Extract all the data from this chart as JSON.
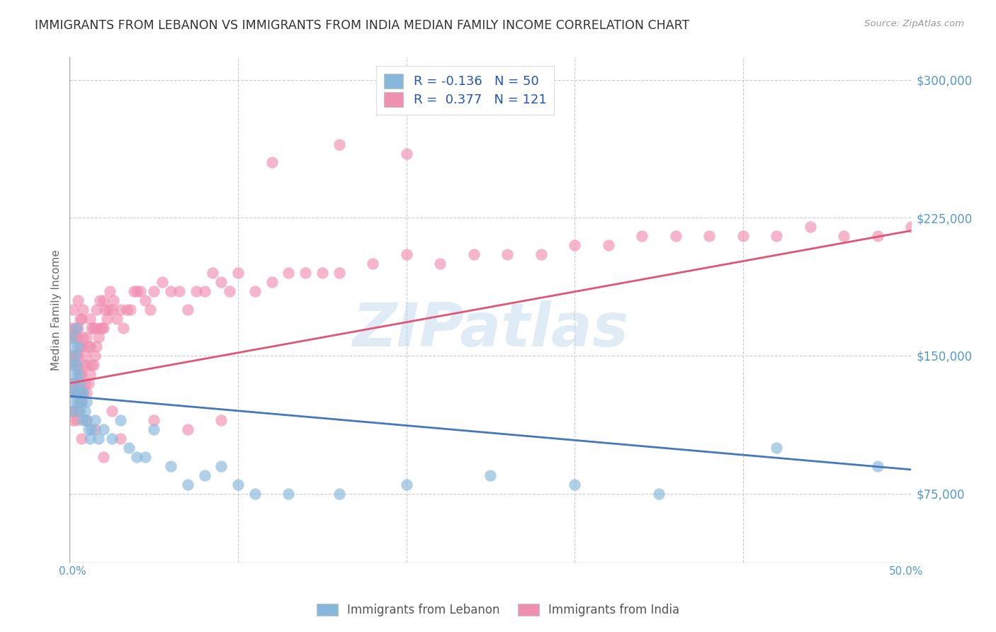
{
  "title": "IMMIGRANTS FROM LEBANON VS IMMIGRANTS FROM INDIA MEDIAN FAMILY INCOME CORRELATION CHART",
  "source": "Source: ZipAtlas.com",
  "ylabel": "Median Family Income",
  "x_min": 0.0,
  "x_max": 0.5,
  "y_min": 37500,
  "y_max": 312500,
  "y_ticks": [
    75000,
    150000,
    225000,
    300000
  ],
  "y_tick_labels": [
    "$75,000",
    "$150,000",
    "$225,000",
    "$300,000"
  ],
  "x_ticks": [
    0.0,
    0.1,
    0.2,
    0.3,
    0.4,
    0.5
  ],
  "watermark": "ZIPatlas",
  "lebanon_color": "#85b8db",
  "india_color": "#f090b0",
  "lebanon_line_color": "#4477bb",
  "india_line_color": "#e05575",
  "background_color": "#ffffff",
  "grid_color": "#cccccc",
  "title_color": "#333333",
  "axis_label_color": "#5599cc",
  "source_color": "#999999",
  "legend_label_color": "#2255bb",
  "legend_entry_1": "R = -0.136   N = 50",
  "legend_entry_2": "R =  0.377   N = 121",
  "bottom_legend_1": "Immigrants from Lebanon",
  "bottom_legend_2": "Immigrants from India",
  "lebanon_trend_x": [
    0.0,
    0.5
  ],
  "lebanon_trend_y": [
    128000,
    88000
  ],
  "india_trend_x": [
    0.0,
    0.5
  ],
  "india_trend_y": [
    135000,
    218000
  ],
  "lebanon_x": [
    0.001,
    0.001,
    0.001,
    0.002,
    0.002,
    0.002,
    0.003,
    0.003,
    0.003,
    0.004,
    0.004,
    0.004,
    0.005,
    0.005,
    0.005,
    0.006,
    0.006,
    0.007,
    0.007,
    0.008,
    0.008,
    0.009,
    0.01,
    0.01,
    0.011,
    0.012,
    0.013,
    0.015,
    0.017,
    0.02,
    0.025,
    0.03,
    0.035,
    0.04,
    0.045,
    0.05,
    0.06,
    0.07,
    0.08,
    0.09,
    0.1,
    0.11,
    0.13,
    0.16,
    0.2,
    0.25,
    0.3,
    0.35,
    0.42,
    0.48
  ],
  "lebanon_y": [
    130000,
    145000,
    160000,
    120000,
    135000,
    155000,
    125000,
    140000,
    150000,
    130000,
    145000,
    165000,
    125000,
    140000,
    155000,
    120000,
    135000,
    130000,
    125000,
    115000,
    130000,
    120000,
    125000,
    115000,
    110000,
    105000,
    110000,
    115000,
    105000,
    110000,
    105000,
    115000,
    100000,
    95000,
    95000,
    110000,
    90000,
    80000,
    85000,
    90000,
    80000,
    75000,
    75000,
    75000,
    80000,
    85000,
    80000,
    75000,
    100000,
    90000
  ],
  "india_x": [
    0.001,
    0.001,
    0.001,
    0.001,
    0.002,
    0.002,
    0.002,
    0.002,
    0.002,
    0.003,
    0.003,
    0.003,
    0.003,
    0.004,
    0.004,
    0.004,
    0.004,
    0.005,
    0.005,
    0.005,
    0.005,
    0.005,
    0.006,
    0.006,
    0.006,
    0.006,
    0.007,
    0.007,
    0.007,
    0.007,
    0.008,
    0.008,
    0.008,
    0.008,
    0.009,
    0.009,
    0.01,
    0.01,
    0.01,
    0.011,
    0.011,
    0.012,
    0.012,
    0.012,
    0.013,
    0.013,
    0.014,
    0.014,
    0.015,
    0.015,
    0.016,
    0.016,
    0.017,
    0.018,
    0.018,
    0.019,
    0.02,
    0.02,
    0.021,
    0.022,
    0.023,
    0.024,
    0.025,
    0.026,
    0.028,
    0.03,
    0.032,
    0.034,
    0.036,
    0.038,
    0.04,
    0.042,
    0.045,
    0.048,
    0.05,
    0.055,
    0.06,
    0.065,
    0.07,
    0.075,
    0.08,
    0.085,
    0.09,
    0.095,
    0.1,
    0.11,
    0.12,
    0.13,
    0.14,
    0.15,
    0.16,
    0.18,
    0.2,
    0.22,
    0.24,
    0.26,
    0.28,
    0.3,
    0.32,
    0.34,
    0.36,
    0.38,
    0.4,
    0.42,
    0.44,
    0.46,
    0.48,
    0.5,
    0.004,
    0.007,
    0.01,
    0.015,
    0.02,
    0.025,
    0.03,
    0.05,
    0.07,
    0.09,
    0.12,
    0.16,
    0.2
  ],
  "india_y": [
    120000,
    135000,
    150000,
    165000,
    115000,
    130000,
    145000,
    160000,
    175000,
    120000,
    135000,
    150000,
    165000,
    115000,
    130000,
    145000,
    160000,
    120000,
    135000,
    150000,
    165000,
    180000,
    125000,
    140000,
    155000,
    170000,
    125000,
    140000,
    155000,
    170000,
    130000,
    145000,
    160000,
    175000,
    135000,
    150000,
    130000,
    145000,
    160000,
    135000,
    155000,
    140000,
    155000,
    170000,
    145000,
    165000,
    145000,
    165000,
    150000,
    165000,
    155000,
    175000,
    160000,
    165000,
    180000,
    165000,
    165000,
    180000,
    175000,
    170000,
    175000,
    185000,
    175000,
    180000,
    170000,
    175000,
    165000,
    175000,
    175000,
    185000,
    185000,
    185000,
    180000,
    175000,
    185000,
    190000,
    185000,
    185000,
    175000,
    185000,
    185000,
    195000,
    190000,
    185000,
    195000,
    185000,
    190000,
    195000,
    195000,
    195000,
    195000,
    200000,
    205000,
    200000,
    205000,
    205000,
    205000,
    210000,
    210000,
    215000,
    215000,
    215000,
    215000,
    215000,
    220000,
    215000,
    215000,
    220000,
    160000,
    105000,
    115000,
    110000,
    95000,
    120000,
    105000,
    115000,
    110000,
    115000,
    255000,
    265000,
    260000
  ]
}
